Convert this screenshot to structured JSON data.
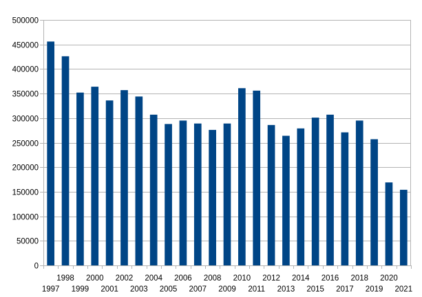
{
  "chart_data": {
    "type": "bar",
    "categories": [
      "1997",
      "1998",
      "1999",
      "2000",
      "2001",
      "2002",
      "2003",
      "2004",
      "2005",
      "2006",
      "2007",
      "2008",
      "2009",
      "2010",
      "2011",
      "2012",
      "2013",
      "2014",
      "2015",
      "2016",
      "2017",
      "2018",
      "2019",
      "2020",
      "2021"
    ],
    "series": [
      {
        "values": [
          456000,
          426000,
          352000,
          364000,
          336000,
          357000,
          344000,
          307000,
          288000,
          295000,
          289000,
          276000,
          289000,
          361000,
          356000,
          286000,
          264000,
          279000,
          301000,
          307000,
          271000,
          295000,
          257000,
          169000,
          154000
        ]
      }
    ],
    "title": "",
    "xlabel": "",
    "ylabel": "",
    "ylim": [
      0,
      500000
    ],
    "yticks": [
      "0",
      "50000",
      "100000",
      "150000",
      "200000",
      "250000",
      "300000",
      "350000",
      "400000",
      "450000",
      "500000"
    ],
    "grid": true,
    "legend": "none",
    "colors": {
      "bar": "#004586",
      "grid": "#b3b3b3",
      "text": "#000000"
    }
  }
}
